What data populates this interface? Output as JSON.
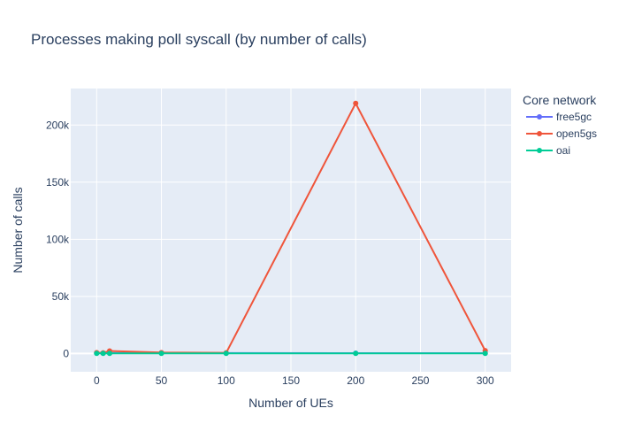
{
  "chart_data": {
    "type": "line",
    "title": "Processes making poll syscall (by number of calls)",
    "xlabel": "Number of UEs",
    "ylabel": "Number of calls",
    "xlim": [
      -20,
      320
    ],
    "ylim": [
      -16000,
      232000
    ],
    "x_ticks": [
      0,
      50,
      100,
      150,
      200,
      250,
      300
    ],
    "x_tick_labels": [
      "0",
      "50",
      "100",
      "150",
      "200",
      "250",
      "300"
    ],
    "y_ticks": [
      0,
      50000,
      100000,
      150000,
      200000
    ],
    "y_tick_labels": [
      "0",
      "50k",
      "100k",
      "150k",
      "200k"
    ],
    "grid": true,
    "legend": {
      "title": "Core network",
      "placement": "top-right-outside"
    },
    "series": [
      {
        "name": "free5gc",
        "color": "#636efa",
        "x": [
          0,
          5,
          10,
          50,
          100,
          200,
          300
        ],
        "y": [
          300,
          300,
          350,
          350,
          350,
          300,
          300
        ]
      },
      {
        "name": "open5gs",
        "color": "#ef553b",
        "x": [
          0,
          5,
          10,
          50,
          100,
          200,
          300
        ],
        "y": [
          800,
          600,
          2200,
          800,
          600,
          219000,
          2500
        ]
      },
      {
        "name": "oai",
        "color": "#00cc96",
        "x": [
          0,
          5,
          10,
          50,
          100,
          200,
          300
        ],
        "y": [
          100,
          100,
          100,
          100,
          100,
          100,
          100
        ]
      }
    ]
  }
}
